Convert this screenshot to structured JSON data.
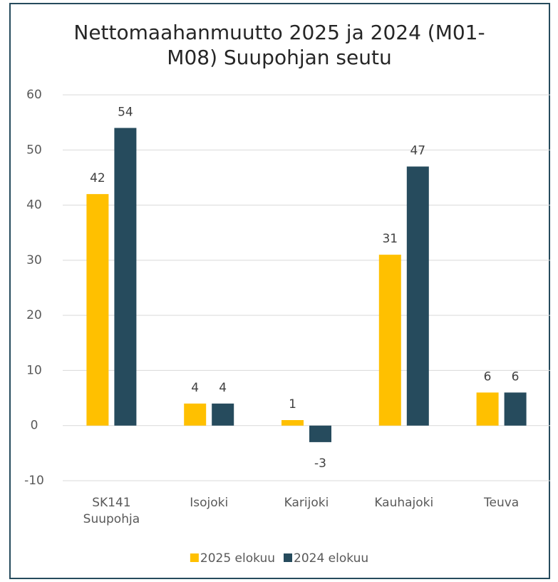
{
  "chart_data": {
    "type": "bar",
    "title": "Nettomaahanmuutto 2025 ja 2024 (M01-M08) Suupohjan seutu",
    "categories": [
      "SK141 Suupohja",
      "Isojoki",
      "Karijoki",
      "Kauhajoki",
      "Teuva"
    ],
    "series": [
      {
        "name": "2025 elokuu",
        "color": "#ffc000",
        "values": [
          42,
          4,
          1,
          31,
          6
        ]
      },
      {
        "name": "2024 elokuu",
        "color": "#264b5d",
        "values": [
          54,
          4,
          -3,
          47,
          6
        ]
      }
    ],
    "ylim": [
      -10,
      60
    ],
    "yticks": [
      -10,
      0,
      10,
      20,
      30,
      40,
      50,
      60
    ],
    "grid": true,
    "legend": "bottom"
  }
}
